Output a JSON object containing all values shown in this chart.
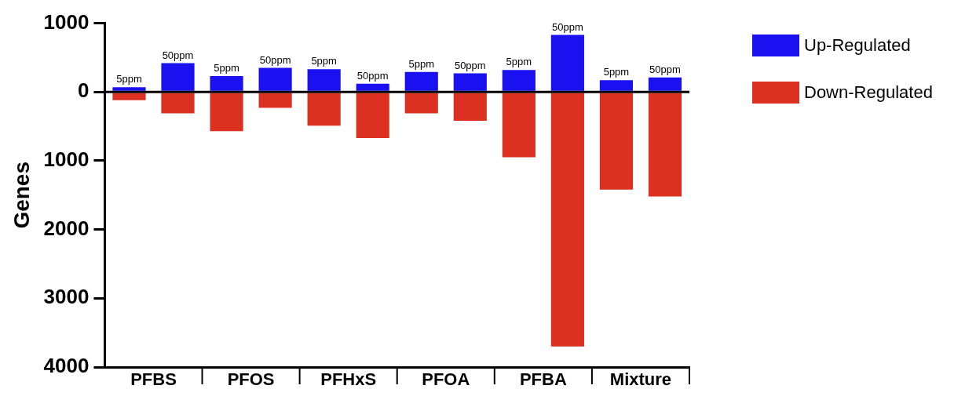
{
  "chart_data": {
    "type": "bar",
    "stacked": true,
    "ylabel": "Genes",
    "categories": [
      null,
      null,
      null,
      null,
      null,
      null,
      null,
      null,
      null,
      null,
      null,
      null
    ],
    "annotations": [
      "PFBS",
      "PFOS",
      "PFHxS",
      "PFOA",
      "PFBA",
      "Mixture",
      {
        "text": "5ppm",
        "y": 70
      },
      {
        "text": "50ppm",
        "y": 420
      },
      {
        "text": "5ppm",
        "y": 230
      },
      {
        "text": "50ppm",
        "y": 350
      },
      {
        "text": "5ppm",
        "y": 330
      },
      {
        "text": "50ppm",
        "y": 120
      },
      {
        "text": "5ppm",
        "y": 290
      },
      {
        "text": "50ppm",
        "y": 270
      },
      {
        "text": "5ppm",
        "y": 320
      },
      {
        "text": "50ppm",
        "y": 830
      },
      {
        "text": "5ppm",
        "y": 170
      },
      {
        "text": "50ppm",
        "y": 210
      }
    ],
    "series": [
      {
        "name": "Up-Regulated",
        "color": "#1a10f0",
        "values": [
          70,
          420,
          230,
          350,
          330,
          120,
          290,
          270,
          320,
          830,
          170,
          210
        ]
      },
      {
        "name": "Down-Regulated",
        "color": "#dc3020",
        "values": [
          -120,
          -310,
          -570,
          -230,
          -490,
          -670,
          -310,
          -420,
          -950,
          -3700,
          -1420,
          -1520
        ]
      }
    ],
    "ylim": [
      -4000,
      1000
    ],
    "yticks": [
      {
        "value": 1000,
        "label": "1000"
      },
      0,
      {
        "value": -1000,
        "label": "1000"
      },
      {
        "value": -2000,
        "label": "2000"
      },
      {
        "value": -3000,
        "label": "3000"
      },
      {
        "value": -4000,
        "label": "4000"
      }
    ],
    "ref_lines": [
      {
        "axis": "y",
        "value": 0,
        "color": "#000000"
      }
    ],
    "grid": false,
    "legend": "top right"
  }
}
